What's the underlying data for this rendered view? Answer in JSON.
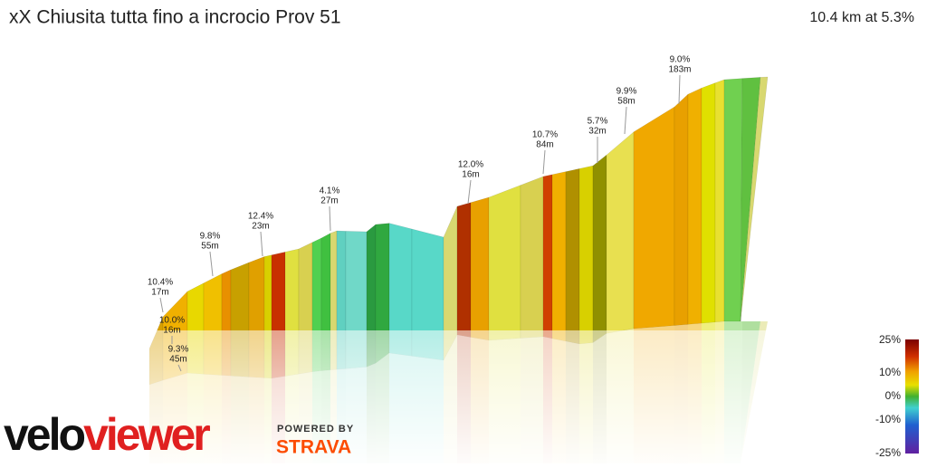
{
  "header": {
    "title": "xX Chiusita tutta fino a incrocio Prov 51",
    "summary": "10.4 km at 5.3%"
  },
  "annotations": [
    {
      "grade": "10.4%",
      "length": "17m"
    },
    {
      "grade": "10.0%",
      "length": "16m"
    },
    {
      "grade": "9.3%",
      "length": "45m"
    },
    {
      "grade": "9.8%",
      "length": "55m"
    },
    {
      "grade": "12.4%",
      "length": "23m"
    },
    {
      "grade": "4.1%",
      "length": "27m"
    },
    {
      "grade": "12.0%",
      "length": "16m"
    },
    {
      "grade": "10.7%",
      "length": "84m"
    },
    {
      "grade": "5.7%",
      "length": "32m"
    },
    {
      "grade": "9.9%",
      "length": "58m"
    },
    {
      "grade": "9.0%",
      "length": "183m"
    }
  ],
  "legend": {
    "ticks": [
      "25%",
      "10%",
      "0%",
      "-10%",
      "-25%"
    ]
  },
  "branding": {
    "logo_start": "velo",
    "logo_end": "viewer",
    "powered": "POWERED BY",
    "strava": "STRAVA"
  }
}
